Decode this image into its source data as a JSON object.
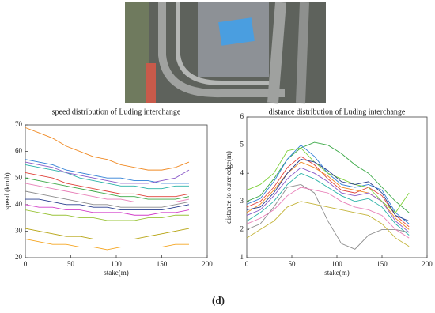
{
  "chart_data": [
    {
      "type": "line",
      "title": "speed distribution of Luding interchange",
      "xlabel": "stake(m)",
      "ylabel": "speed (km/h)",
      "x": [
        0,
        15,
        30,
        45,
        60,
        75,
        90,
        105,
        120,
        135,
        150,
        165,
        180
      ],
      "xlim": [
        0,
        200
      ],
      "xticks": [
        0,
        50,
        100,
        150,
        200
      ],
      "ylim": [
        20,
        70
      ],
      "yticks": [
        20,
        30,
        40,
        50,
        60,
        70
      ],
      "series": [
        {
          "color": "#f08a24",
          "values": [
            69,
            67,
            65,
            62,
            60,
            58,
            57,
            55,
            54,
            53,
            53,
            54,
            56
          ]
        },
        {
          "color": "#2f7fd6",
          "values": [
            57,
            56,
            55,
            53,
            52,
            51,
            50,
            50,
            49,
            49,
            48,
            48,
            48
          ]
        },
        {
          "color": "#2bb3a8",
          "values": [
            55,
            54,
            53,
            52,
            50,
            49,
            48,
            47,
            47,
            46,
            46,
            47,
            47
          ]
        },
        {
          "color": "#8a5ac8",
          "values": [
            56,
            55,
            54,
            52,
            51,
            50,
            49,
            48,
            48,
            48,
            49,
            50,
            53
          ]
        },
        {
          "color": "#e0443c",
          "values": [
            52,
            51,
            50,
            48,
            47,
            46,
            45,
            44,
            44,
            43,
            43,
            43,
            44
          ]
        },
        {
          "color": "#3aa845",
          "values": [
            50,
            49,
            48,
            47,
            46,
            45,
            44,
            43,
            43,
            42,
            42,
            42,
            43
          ]
        },
        {
          "color": "#e87fb8",
          "values": [
            48,
            47,
            46,
            45,
            44,
            43,
            42,
            42,
            41,
            41,
            41,
            41,
            42
          ]
        },
        {
          "color": "#8c8c8c",
          "values": [
            45,
            44,
            43,
            42,
            41,
            40,
            40,
            39,
            39,
            39,
            39,
            40,
            41
          ]
        },
        {
          "color": "#2a3f8f",
          "values": [
            42,
            42,
            41,
            40,
            40,
            39,
            39,
            38,
            38,
            38,
            38,
            39,
            40
          ]
        },
        {
          "color": "#d23fc9",
          "values": [
            40,
            39,
            39,
            38,
            38,
            37,
            37,
            37,
            36,
            36,
            37,
            37,
            38
          ]
        },
        {
          "color": "#9ac43a",
          "values": [
            38,
            37,
            36,
            36,
            35,
            35,
            34,
            34,
            34,
            35,
            35,
            36,
            36
          ]
        },
        {
          "color": "#b5a20e",
          "values": [
            31,
            30,
            29,
            28,
            28,
            27,
            27,
            27,
            27,
            28,
            29,
            30,
            31
          ]
        },
        {
          "color": "#f5a623",
          "values": [
            27,
            26,
            25,
            25,
            24,
            24,
            23,
            24,
            24,
            24,
            24,
            25,
            25
          ]
        }
      ]
    },
    {
      "type": "line",
      "title": "distance distribution of Luding interchange",
      "xlabel": "stake(m)",
      "ylabel": "distance to outer edge(m)",
      "x": [
        0,
        15,
        30,
        45,
        60,
        75,
        90,
        105,
        120,
        135,
        150,
        165,
        180
      ],
      "xlim": [
        0,
        200
      ],
      "xticks": [
        0,
        50,
        100,
        150,
        200
      ],
      "ylim": [
        1,
        6
      ],
      "yticks": [
        1,
        2,
        3,
        4,
        5,
        6
      ],
      "series": [
        {
          "color": "#3aa845",
          "values": [
            3,
            3.2,
            3.8,
            4.5,
            4.9,
            5.1,
            5.0,
            4.7,
            4.3,
            4.0,
            3.5,
            3.0,
            2.6
          ]
        },
        {
          "color": "#2f7fd6",
          "values": [
            2.9,
            3.1,
            3.7,
            4.5,
            5.0,
            4.6,
            4.0,
            3.6,
            3.5,
            3.6,
            3.4,
            2.6,
            2.2
          ]
        },
        {
          "color": "#e0443c",
          "values": [
            2.8,
            3.0,
            3.5,
            4.2,
            4.6,
            4.3,
            3.8,
            3.4,
            3.3,
            3.5,
            3.2,
            2.5,
            2.1
          ]
        },
        {
          "color": "#f08a24",
          "values": [
            2.6,
            2.9,
            3.4,
            4.0,
            4.4,
            4.2,
            3.9,
            3.5,
            3.4,
            3.3,
            3.0,
            2.4,
            2.0
          ]
        },
        {
          "color": "#8a5ac8",
          "values": [
            2.5,
            2.7,
            3.2,
            3.8,
            4.2,
            4.0,
            3.7,
            3.3,
            3.2,
            3.3,
            3.0,
            2.3,
            1.9
          ]
        },
        {
          "color": "#2bb3a8",
          "values": [
            2.3,
            2.6,
            3.0,
            3.6,
            4.0,
            3.8,
            3.5,
            3.2,
            3.0,
            3.1,
            2.8,
            2.2,
            1.8
          ]
        },
        {
          "color": "#8c8c8c",
          "values": [
            2.0,
            2.2,
            2.8,
            3.5,
            3.6,
            3.3,
            2.3,
            1.5,
            1.3,
            1.8,
            2.0,
            2.0,
            1.9
          ]
        },
        {
          "color": "#e87fb8",
          "values": [
            2.2,
            2.4,
            2.7,
            3.2,
            3.5,
            3.4,
            3.3,
            3.0,
            2.8,
            2.7,
            2.5,
            2.0,
            1.7
          ]
        },
        {
          "color": "#c4b43a",
          "values": [
            1.7,
            2.0,
            2.3,
            2.8,
            3.0,
            2.9,
            2.8,
            2.7,
            2.6,
            2.5,
            2.2,
            1.7,
            1.4
          ]
        },
        {
          "color": "#7fd13b",
          "values": [
            3.4,
            3.6,
            4.0,
            4.8,
            4.9,
            4.4,
            4.0,
            3.8,
            3.6,
            3.5,
            3.0,
            2.6,
            3.3
          ]
        },
        {
          "color": "#2a3f8f",
          "values": [
            2.7,
            2.8,
            3.3,
            4.0,
            4.5,
            4.4,
            4.1,
            3.7,
            3.6,
            3.7,
            3.3,
            2.5,
            2.3
          ]
        }
      ]
    }
  ],
  "caption": "(d)"
}
